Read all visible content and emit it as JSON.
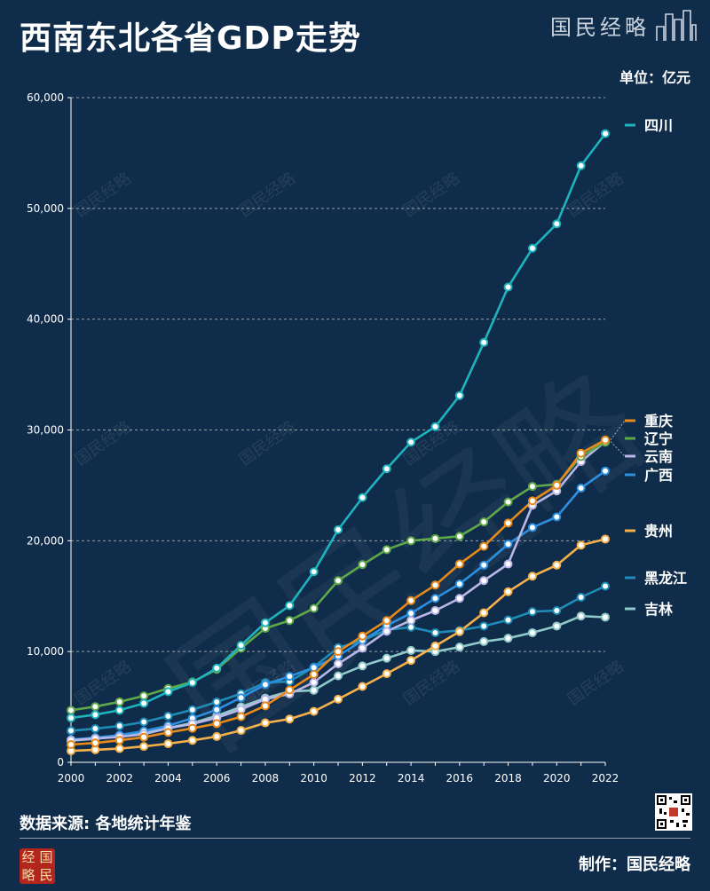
{
  "header": {
    "title": "西南东北各省GDP走势",
    "brand": "国民经略",
    "unit": "单位：亿元"
  },
  "footer": {
    "source": "数据来源: 各地统计年鉴",
    "credit": "制作：国民经略",
    "stamp": [
      "经",
      "国",
      "略",
      "民"
    ]
  },
  "watermark": "国民经略",
  "chart_data": {
    "type": "line",
    "title": "西南东北各省GDP走势",
    "ylabel": "",
    "xlabel": "",
    "x": [
      2000,
      2001,
      2002,
      2003,
      2004,
      2005,
      2006,
      2007,
      2008,
      2009,
      2010,
      2011,
      2012,
      2013,
      2014,
      2015,
      2016,
      2017,
      2018,
      2019,
      2020,
      2021,
      2022
    ],
    "xticks": [
      2000,
      2002,
      2004,
      2006,
      2008,
      2010,
      2012,
      2014,
      2016,
      2018,
      2020,
      2022
    ],
    "ylim": [
      0,
      60000
    ],
    "yticks": [
      0,
      10000,
      20000,
      30000,
      40000,
      50000,
      60000
    ],
    "ytick_labels": [
      "0",
      "10,000",
      "20,000",
      "30,000",
      "40,000",
      "50,000",
      "60,000"
    ],
    "grid": true,
    "legend_position": "right",
    "series": [
      {
        "name": "四川",
        "color": "#1fb3bd",
        "values": [
          4010,
          4300,
          4700,
          5330,
          6380,
          7200,
          8500,
          10560,
          12600,
          14150,
          17200,
          21000,
          23900,
          26500,
          28900,
          30300,
          33100,
          37900,
          42900,
          46400,
          48600,
          53850,
          56750
        ]
      },
      {
        "name": "重庆",
        "color": "#e88a1a",
        "values": [
          1600,
          1750,
          1990,
          2270,
          2690,
          3070,
          3490,
          4120,
          5100,
          6530,
          7930,
          10000,
          11400,
          12800,
          14600,
          16000,
          17900,
          19500,
          21600,
          23600,
          25000,
          27900,
          29100
        ]
      },
      {
        "name": "辽宁",
        "color": "#5fa84a",
        "values": [
          4700,
          5030,
          5460,
          6000,
          6670,
          7260,
          8390,
          10300,
          12100,
          12800,
          13900,
          16400,
          17850,
          19200,
          20000,
          20200,
          20400,
          21700,
          23500,
          24900,
          25100,
          27600,
          28900
        ]
      },
      {
        "name": "云南",
        "color": "#b9b6e8",
        "values": [
          2000,
          2150,
          2300,
          2550,
          3080,
          3470,
          4010,
          4770,
          5700,
          6170,
          7220,
          8890,
          10300,
          11830,
          12810,
          13700,
          14800,
          16400,
          17900,
          23200,
          24500,
          27150,
          28950
        ]
      },
      {
        "name": "广西",
        "color": "#2c8fe0",
        "values": [
          2050,
          2230,
          2460,
          2820,
          3310,
          3980,
          4750,
          5830,
          7020,
          7760,
          8550,
          9600,
          11000,
          12350,
          13450,
          14800,
          16100,
          17800,
          19700,
          21200,
          22150,
          24750,
          26300
        ]
      },
      {
        "name": "贵州",
        "color": "#f5b04a",
        "values": [
          1030,
          1130,
          1240,
          1430,
          1680,
          1980,
          2330,
          2880,
          3560,
          3910,
          4600,
          5700,
          6850,
          8000,
          9200,
          10500,
          11800,
          13500,
          15400,
          16800,
          17800,
          19600,
          20150
        ]
      },
      {
        "name": "黑龙江",
        "color": "#1f8cb8",
        "values": [
          2850,
          3040,
          3280,
          3640,
          4170,
          4750,
          5450,
          6200,
          7200,
          7300,
          8600,
          10350,
          11000,
          11950,
          12200,
          11700,
          11900,
          12300,
          12850,
          13600,
          13700,
          14900,
          15900
        ]
      },
      {
        "name": "吉林",
        "color": "#8fc9c9",
        "values": [
          1950,
          2120,
          2340,
          2640,
          3100,
          3550,
          4200,
          5000,
          5800,
          6400,
          6500,
          7800,
          8700,
          9400,
          10100,
          10000,
          10400,
          10900,
          11200,
          11700,
          12300,
          13200,
          13100
        ]
      }
    ],
    "legend_order": [
      "四川",
      "重庆",
      "辽宁",
      "云南",
      "广西",
      "贵州",
      "黑龙江",
      "吉林"
    ]
  }
}
